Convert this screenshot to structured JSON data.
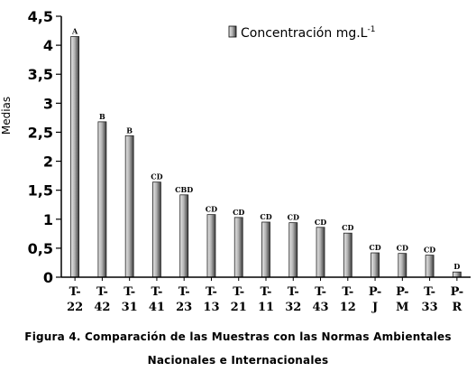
{
  "chart_data": {
    "type": "bar",
    "ylabel": "Medias",
    "ylim": [
      0,
      4.5
    ],
    "yticks": [
      "0",
      "0,5",
      "1",
      "1,5",
      "2",
      "2,5",
      "3",
      "3,5",
      "4",
      "4,5"
    ],
    "ytick_values": [
      0,
      0.5,
      1,
      1.5,
      2,
      2.5,
      3,
      3.5,
      4,
      4.5
    ],
    "categories": [
      [
        "T-",
        "22"
      ],
      [
        "T-",
        "42"
      ],
      [
        "T-",
        "31"
      ],
      [
        "T-",
        "41"
      ],
      [
        "T-",
        "23"
      ],
      [
        "T-",
        "13"
      ],
      [
        "T-",
        "21"
      ],
      [
        "T-",
        "11"
      ],
      [
        "T-",
        "32"
      ],
      [
        "T-",
        "43"
      ],
      [
        "T-",
        "12"
      ],
      [
        "P-",
        "J"
      ],
      [
        "P-",
        "M"
      ],
      [
        "T-",
        "33"
      ],
      [
        "P-",
        "R"
      ]
    ],
    "series": [
      {
        "name": "Concentración mg.L-1",
        "legend_text": "Concentración mg.L",
        "legend_superscript": "-1",
        "values": [
          4.15,
          2.68,
          2.44,
          1.64,
          1.42,
          1.08,
          1.03,
          0.95,
          0.94,
          0.86,
          0.76,
          0.42,
          0.41,
          0.38,
          0.09
        ],
        "letters": [
          "A",
          "B",
          "B",
          "CD",
          "CBD",
          "CD",
          "CD",
          "CD",
          "CD",
          "CD",
          "CD",
          "CD",
          "CD",
          "CD",
          "D"
        ]
      }
    ],
    "grid": false,
    "legend_position": "top-right"
  },
  "caption": {
    "line1": "Figura 4. Comparación de las Muestras con las Normas Ambientales",
    "line2": "Nacionales e Internacionales"
  },
  "colors": {
    "bar_light": "#bdbdbd",
    "bar_dark": "#4a4a4a",
    "axis": "#000000"
  }
}
